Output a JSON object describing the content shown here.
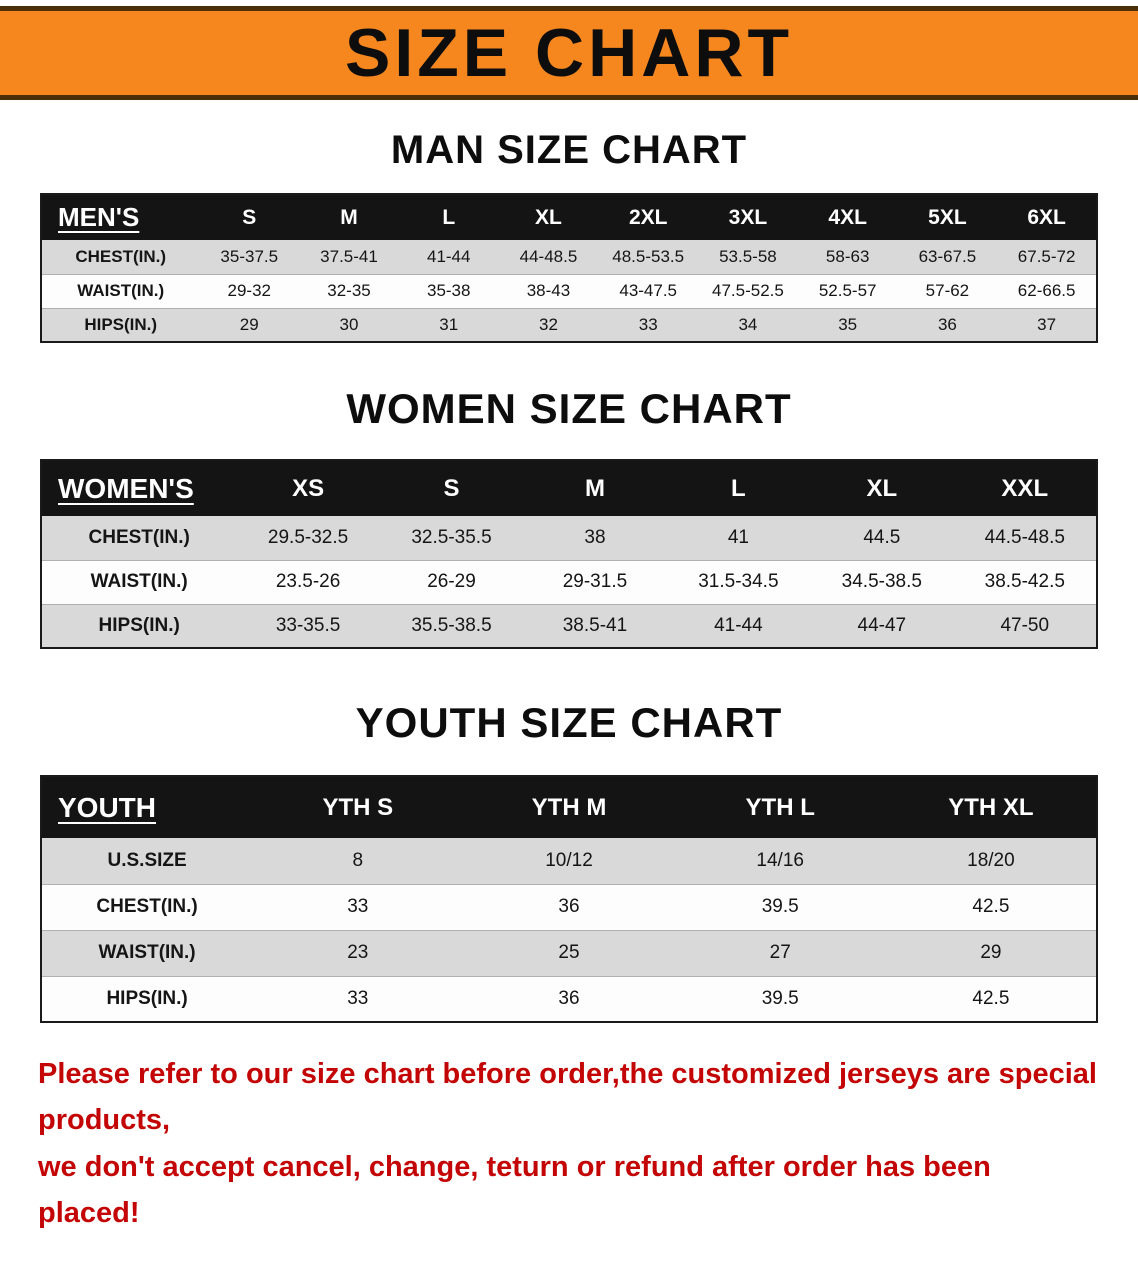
{
  "banner": {
    "title": "SIZE CHART"
  },
  "sections": {
    "men": {
      "heading": "MAN SIZE CHART",
      "table": {
        "header": [
          "MEN'S",
          "S",
          "M",
          "L",
          "XL",
          "2XL",
          "3XL",
          "4XL",
          "5XL",
          "6XL"
        ],
        "rows": [
          [
            "CHEST(IN.)",
            "35-37.5",
            "37.5-41",
            "41-44",
            "44-48.5",
            "48.5-53.5",
            "53.5-58",
            "58-63",
            "63-67.5",
            "67.5-72"
          ],
          [
            "WAIST(IN.)",
            "29-32",
            "32-35",
            "35-38",
            "38-43",
            "43-47.5",
            "47.5-52.5",
            "52.5-57",
            "57-62",
            "62-66.5"
          ],
          [
            "HIPS(IN.)",
            "29",
            "30",
            "31",
            "32",
            "33",
            "34",
            "35",
            "36",
            "37"
          ]
        ]
      }
    },
    "women": {
      "heading": "WOMEN SIZE CHART",
      "table": {
        "header": [
          "WOMEN'S",
          "XS",
          "S",
          "M",
          "L",
          "XL",
          "XXL"
        ],
        "rows": [
          [
            "CHEST(IN.)",
            "29.5-32.5",
            "32.5-35.5",
            "38",
            "41",
            "44.5",
            "44.5-48.5"
          ],
          [
            "WAIST(IN.)",
            "23.5-26",
            "26-29",
            "29-31.5",
            "31.5-34.5",
            "34.5-38.5",
            "38.5-42.5"
          ],
          [
            "HIPS(IN.)",
            "33-35.5",
            "35.5-38.5",
            "38.5-41",
            "41-44",
            "44-47",
            "47-50"
          ]
        ]
      }
    },
    "youth": {
      "heading": "YOUTH SIZE CHART",
      "table": {
        "header": [
          "YOUTH",
          "YTH S",
          "YTH M",
          "YTH L",
          "YTH XL"
        ],
        "rows": [
          [
            "U.S.SIZE",
            "8",
            "10/12",
            "14/16",
            "18/20"
          ],
          [
            "CHEST(IN.)",
            "33",
            "36",
            "39.5",
            "42.5"
          ],
          [
            "WAIST(IN.)",
            "23",
            "25",
            "27",
            "29"
          ],
          [
            "HIPS(IN.)",
            "33",
            "36",
            "39.5",
            "42.5"
          ]
        ]
      }
    }
  },
  "disclaimer": {
    "line1": "Please refer to our size chart before order,the customized jerseys are special products,",
    "line2": "we don't accept cancel, change, teturn or refund after order has been placed!"
  },
  "colors": {
    "banner_orange": "#F6871F",
    "header_black": "#141414",
    "stripe_gray": "#D9D9D9",
    "disclaimer_red": "#C40505"
  }
}
